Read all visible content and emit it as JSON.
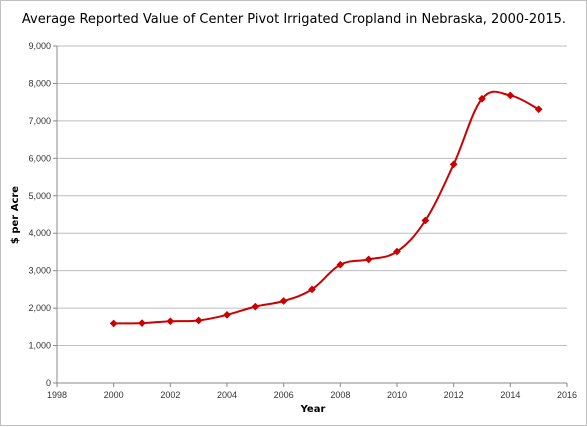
{
  "chart_data": {
    "type": "line",
    "title": "Average Reported Value of Center Pivot Irrigated Cropland in Nebraska, 2000-2015.",
    "xlabel": "Year",
    "ylabel": "$ per Acre",
    "xlim": [
      1998,
      2016
    ],
    "ylim": [
      0,
      9000
    ],
    "x_ticks": [
      "1998",
      "2000",
      "2002",
      "2004",
      "2006",
      "2008",
      "2010",
      "2012",
      "2014",
      "2016"
    ],
    "y_ticks": [
      "0",
      "1,000",
      "2,000",
      "3,000",
      "4,000",
      "5,000",
      "6,000",
      "7,000",
      "8,000",
      "9,000"
    ],
    "grid": "horizontal",
    "legend": "none",
    "series": [
      {
        "color": "#cc0000",
        "x": [
          2000,
          2001,
          2002,
          2003,
          2004,
          2005,
          2006,
          2007,
          2008,
          2009,
          2010,
          2011,
          2012,
          2013,
          2014,
          2015
        ],
        "values": [
          1590,
          1600,
          1650,
          1670,
          1820,
          2040,
          2190,
          2500,
          3160,
          3300,
          3510,
          4340,
          5840,
          7590,
          7680,
          7310
        ]
      }
    ]
  }
}
